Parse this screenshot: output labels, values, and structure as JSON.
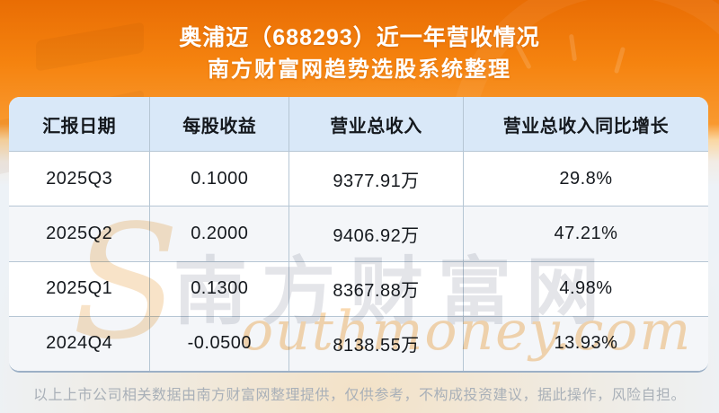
{
  "header": {
    "title": "奥浦迈（688293）近一年营收情况",
    "subtitle": "南方财富网趋势选股系统整理"
  },
  "chart_data": {
    "type": "table",
    "title": "奥浦迈（688293）近一年营收情况",
    "subtitle": "南方财富网趋势选股系统整理",
    "columns": [
      "汇报日期",
      "每股收益",
      "营业总收入",
      "营业总收入同比增长"
    ],
    "rows": [
      [
        "2025Q3",
        "0.1000",
        "9377.91万",
        "29.8%"
      ],
      [
        "2025Q2",
        "0.2000",
        "9406.92万",
        "47.21%"
      ],
      [
        "2025Q1",
        "0.1300",
        "8367.88万",
        "4.98%"
      ],
      [
        "2024Q4",
        "-0.0500",
        "8138.55万",
        "13.93%"
      ]
    ],
    "units": {
      "营业总收入": "万",
      "每股收益": "元",
      "营业总收入同比增长": "%"
    }
  },
  "watermark": {
    "cjk": "南方财富网",
    "s": "S",
    "latin": "outhmoney.com"
  },
  "footer": {
    "disclaimer": "以上上市公司相关数据由南方财富网整理提供，仅供参考，不构成投资建议，据此操作，风险自担。"
  },
  "colors": {
    "hero_orange_top": "#e96d04",
    "hero_orange_mid": "#f5830f",
    "hero_peach_band": "#fad7a2",
    "page_bottom": "#edf2f7",
    "header_row_bg": "#d9e8f8",
    "row_bg": "#ffffff",
    "row_alt_bg": "#f4f6f9",
    "grid_border": "#b6c6d4",
    "table_bottom_border": "#9cb0c6",
    "cell_text": "#15191e",
    "title_text": "#ffffff",
    "disclaimer_text": "#a9b0b8",
    "watermark_cjk": "#e4e5e9",
    "watermark_peach": "#f9d9b0"
  }
}
